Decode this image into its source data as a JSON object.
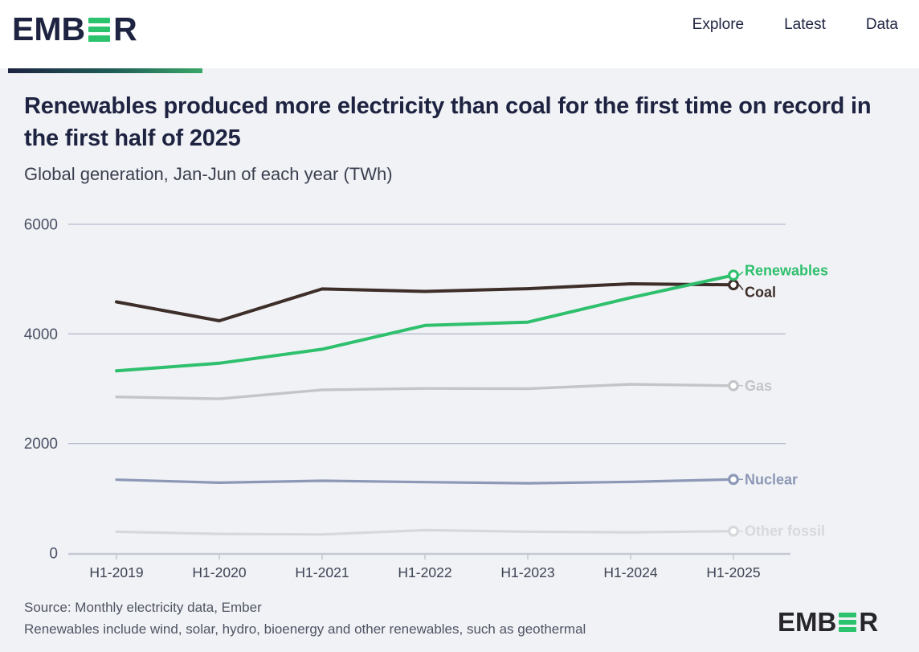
{
  "brand": {
    "name": "EMBER",
    "prefix": "EMB",
    "suffix": "R",
    "green": "#2bc36d",
    "navy": "#1d2340"
  },
  "header": {
    "nav": [
      {
        "label": "Explore"
      },
      {
        "label": "Latest"
      },
      {
        "label": "Data"
      }
    ]
  },
  "title": "Renewables produced more electricity than coal for the first time on record in the first half of 2025",
  "subtitle": "Global generation, Jan-Jun of each year (TWh)",
  "footer": {
    "line1": "Source: Monthly electricity data, Ember",
    "line2": "Renewables include wind, solar, hydro, bioenergy and other renewables, such as geothermal"
  },
  "colors": {
    "background": "#f1f2f6",
    "header_background": "#ffffff",
    "gridline": "#b6bccf",
    "axis": "#c5c9d3",
    "y_tick_label": "#4a5164",
    "x_tick_label": "#3e4353"
  },
  "chart_data": {
    "type": "line",
    "title": "Renewables produced more electricity than coal for the first time on record in the first half of 2025",
    "subtitle": "Global generation, Jan-Jun of each year (TWh)",
    "unit": "TWh",
    "xlabel": "",
    "ylabel": "",
    "grid": true,
    "legend_position": "end-of-line-right",
    "categories": [
      "H1-2019",
      "H1-2020",
      "H1-2021",
      "H1-2022",
      "H1-2023",
      "H1-2024",
      "H1-2025"
    ],
    "yticks": [
      0,
      2000,
      4000,
      6000
    ],
    "ylim": [
      0,
      6000
    ],
    "series": [
      {
        "name": "Renewables",
        "color": "#2fc06e",
        "values": [
          3325,
          3465,
          3720,
          4155,
          4215,
          4660,
          5072
        ]
      },
      {
        "name": "Coal",
        "color": "#3d2e29",
        "values": [
          4585,
          4240,
          4820,
          4775,
          4825,
          4915,
          4896
        ]
      },
      {
        "name": "Gas",
        "color": "#c4c5c9",
        "values": [
          2850,
          2815,
          2980,
          3005,
          3000,
          3080,
          3055
        ]
      },
      {
        "name": "Nuclear",
        "color": "#8c98b6",
        "values": [
          1340,
          1285,
          1320,
          1295,
          1275,
          1300,
          1345
        ]
      },
      {
        "name": "Other fossil",
        "color": "#d7d8dc",
        "values": [
          390,
          350,
          340,
          420,
          390,
          380,
          400
        ]
      }
    ]
  }
}
